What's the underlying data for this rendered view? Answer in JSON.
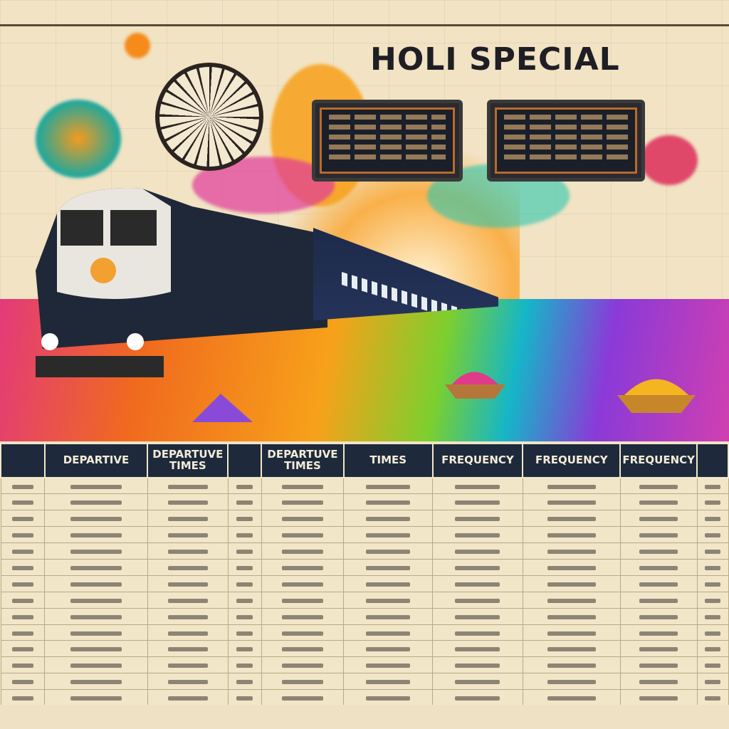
{
  "banner": {
    "title": "HOLI SPECIAL"
  },
  "colors": {
    "header_bg": "#1e2a3c",
    "paper": "#f2e6c8",
    "accent_orange": "#f06a1e",
    "accent_pink": "#e33a7a",
    "accent_purple": "#8a3ad8",
    "accent_teal": "#15b6c8"
  },
  "table": {
    "headers": [
      "",
      "DEPARTIVE",
      "DEPARTUVE TIMES",
      "",
      "DEPARTUVE TIMES",
      "TIMES",
      "FREQUENCY",
      "FREQUENCY",
      "FREQUENCY",
      ""
    ],
    "row_count": 14
  },
  "icons": [
    "departure-board-icon",
    "ashoka-wheel-icon",
    "train-icon",
    "color-powder-bowl-icon",
    "garland-icon"
  ]
}
